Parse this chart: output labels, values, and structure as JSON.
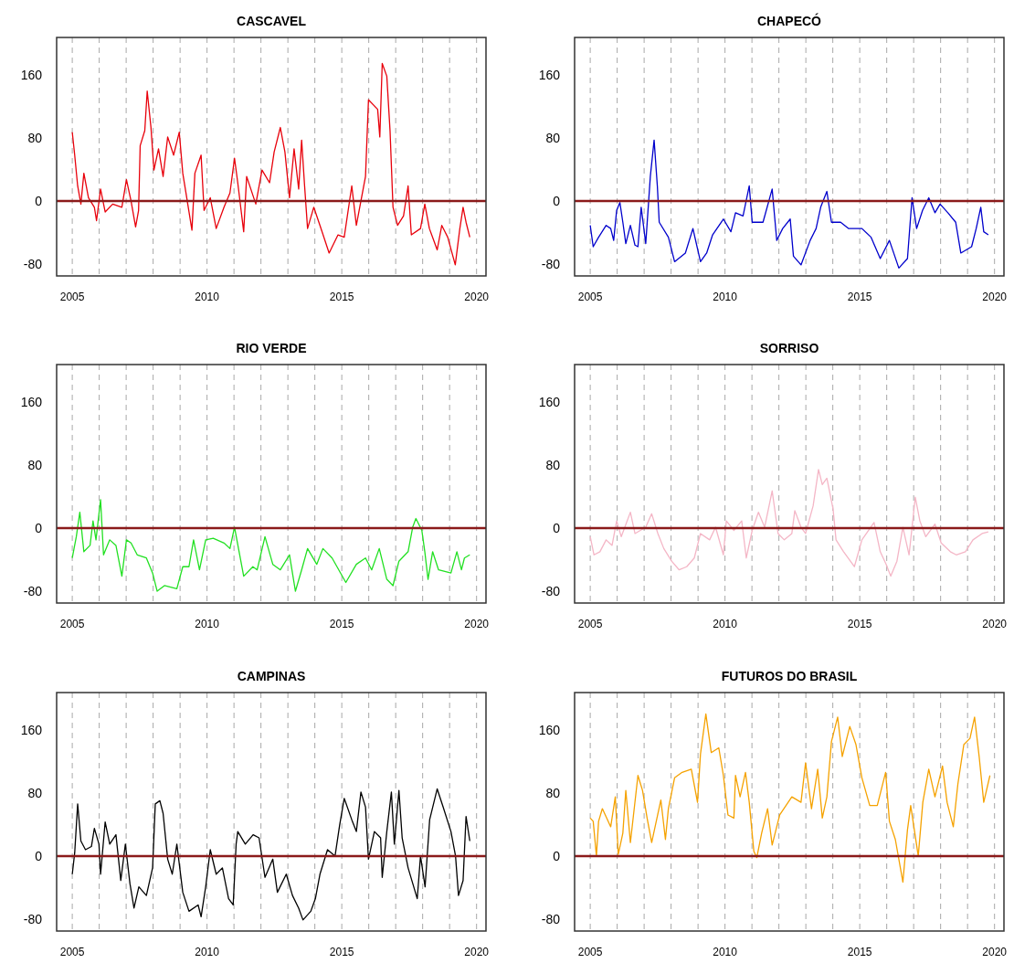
{
  "chart_data": [
    {
      "type": "line",
      "title": "CASCAVEL",
      "xlim": [
        2004.42,
        2020.35
      ],
      "ylim": [
        -95,
        207
      ],
      "yticks": [
        -80,
        0,
        80,
        160
      ],
      "grid": "x",
      "xticks": [
        2005,
        {
          "value": 2006,
          "label": null
        },
        {
          "value": 2007,
          "label": null
        },
        {
          "value": 2008,
          "label": null
        },
        {
          "value": 2009,
          "label": null
        },
        2010,
        {
          "value": 2011,
          "label": null
        },
        {
          "value": 2012,
          "label": null
        },
        {
          "value": 2013,
          "label": null
        },
        {
          "value": 2014,
          "label": null
        },
        2015,
        {
          "value": 2016,
          "label": null
        },
        {
          "value": 2017,
          "label": null
        },
        {
          "value": 2018,
          "label": null
        },
        {
          "value": 2019,
          "label": null
        },
        2020
      ],
      "ref_lines": [
        {
          "axis": "y",
          "value": 0,
          "color": "#8b1a1a"
        }
      ],
      "x": [
        2005.0,
        2005.09,
        2005.2,
        2005.32,
        2005.43,
        2005.6,
        2005.82,
        2005.9,
        2006.05,
        2006.22,
        2006.5,
        2006.84,
        2007.01,
        2007.18,
        2007.35,
        2007.46,
        2007.52,
        2007.69,
        2007.78,
        2007.92,
        2008.03,
        2008.2,
        2008.37,
        2008.54,
        2008.76,
        2008.97,
        2009.1,
        2009.21,
        2009.44,
        2009.55,
        2009.78,
        2009.89,
        2010.12,
        2010.34,
        2010.63,
        2010.85,
        2011.02,
        2011.14,
        2011.36,
        2011.47,
        2011.81,
        2012.04,
        2012.32,
        2012.49,
        2012.72,
        2012.89,
        2013.06,
        2013.23,
        2013.4,
        2013.51,
        2013.62,
        2013.73,
        2013.96,
        2014.19,
        2014.53,
        2014.86,
        2015.09,
        2015.37,
        2015.54,
        2015.88,
        2015.99,
        2016.33,
        2016.41,
        2016.5,
        2016.67,
        2016.79,
        2016.9,
        2017.07,
        2017.29,
        2017.46,
        2017.58,
        2017.92,
        2018.08,
        2018.25,
        2018.54,
        2018.71,
        2018.93,
        2019.21,
        2019.38,
        2019.5,
        2019.61,
        2019.75
      ],
      "series": [
        {
          "color": "#e8000b",
          "values": [
            87,
            58,
            19,
            -4,
            35,
            4,
            -8,
            -25,
            15,
            -14,
            -4,
            -8,
            27,
            0,
            -33,
            -12,
            70,
            89,
            139,
            93,
            39,
            66,
            31,
            81,
            58,
            87,
            35,
            12,
            -37,
            35,
            58,
            -12,
            4,
            -35,
            -8,
            10,
            54,
            23,
            -39,
            31,
            -4,
            39,
            23,
            62,
            93,
            62,
            4,
            66,
            15,
            77,
            19,
            -35,
            -8,
            -31,
            -66,
            -43,
            -46,
            19,
            -31,
            31,
            128,
            116,
            81,
            174,
            158,
            89,
            -8,
            -31,
            -19,
            19,
            -43,
            -35,
            -4,
            -35,
            -62,
            -31,
            -46,
            -81,
            -35,
            -8,
            -27,
            -46
          ]
        }
      ]
    },
    {
      "type": "line",
      "title": "CHAPECÓ",
      "xlim": [
        2004.42,
        2020.35
      ],
      "ylim": [
        -95,
        207
      ],
      "yticks": [
        -80,
        0,
        80,
        160
      ],
      "grid": "x",
      "xticks": [
        2005,
        {
          "value": 2006,
          "label": null
        },
        {
          "value": 2007,
          "label": null
        },
        {
          "value": 2008,
          "label": null
        },
        {
          "value": 2009,
          "label": null
        },
        2010,
        {
          "value": 2011,
          "label": null
        },
        {
          "value": 2012,
          "label": null
        },
        {
          "value": 2013,
          "label": null
        },
        {
          "value": 2014,
          "label": null
        },
        2015,
        {
          "value": 2016,
          "label": null
        },
        {
          "value": 2017,
          "label": null
        },
        {
          "value": 2018,
          "label": null
        },
        {
          "value": 2019,
          "label": null
        },
        2020
      ],
      "ref_lines": [
        {
          "axis": "y",
          "value": 0,
          "color": "#8b1a1a"
        }
      ],
      "x": [
        2005.0,
        2005.11,
        2005.31,
        2005.59,
        2005.76,
        2005.87,
        2005.98,
        2006.1,
        2006.21,
        2006.32,
        2006.49,
        2006.66,
        2006.77,
        2006.89,
        2007.06,
        2007.23,
        2007.37,
        2007.49,
        2007.56,
        2007.9,
        2008.13,
        2008.53,
        2008.81,
        2009.09,
        2009.32,
        2009.54,
        2009.94,
        2010.22,
        2010.39,
        2010.67,
        2010.9,
        2011.01,
        2011.41,
        2011.75,
        2011.92,
        2012.14,
        2012.42,
        2012.54,
        2012.82,
        2013.16,
        2013.38,
        2013.55,
        2013.78,
        2013.95,
        2014.29,
        2014.59,
        2015.08,
        2015.42,
        2015.76,
        2016.1,
        2016.45,
        2016.77,
        2016.94,
        2017.11,
        2017.33,
        2017.56,
        2017.79,
        2017.98,
        2018.27,
        2018.56,
        2018.75,
        2019.15,
        2019.32,
        2019.49,
        2019.6,
        2019.77
      ],
      "series": [
        {
          "color": "#0000cc",
          "values": [
            -31,
            -58,
            -46,
            -31,
            -35,
            -50,
            -12,
            -2,
            -27,
            -54,
            -31,
            -56,
            -58,
            -8,
            -54,
            31,
            77,
            19,
            -27,
            -46,
            -77,
            -66,
            -35,
            -77,
            -66,
            -43,
            -23,
            -39,
            -15,
            -19,
            19,
            -27,
            -27,
            15,
            -50,
            -35,
            -23,
            -70,
            -81,
            -50,
            -35,
            -8,
            12,
            -27,
            -27,
            -35,
            -35,
            -46,
            -73,
            -50,
            -85,
            -73,
            4,
            -35,
            -12,
            4,
            -15,
            -4,
            -15,
            -27,
            -66,
            -58,
            -35,
            -8,
            -39,
            -43
          ]
        }
      ]
    },
    {
      "type": "line",
      "title": "RIO VERDE",
      "xlim": [
        2004.42,
        2020.35
      ],
      "ylim": [
        -95,
        207
      ],
      "yticks": [
        -80,
        0,
        80,
        160
      ],
      "grid": "x",
      "xticks": [
        2005,
        {
          "value": 2006,
          "label": null
        },
        {
          "value": 2007,
          "label": null
        },
        {
          "value": 2008,
          "label": null
        },
        {
          "value": 2009,
          "label": null
        },
        2010,
        {
          "value": 2011,
          "label": null
        },
        {
          "value": 2012,
          "label": null
        },
        {
          "value": 2013,
          "label": null
        },
        {
          "value": 2014,
          "label": null
        },
        2015,
        {
          "value": 2016,
          "label": null
        },
        {
          "value": 2017,
          "label": null
        },
        {
          "value": 2018,
          "label": null
        },
        {
          "value": 2019,
          "label": null
        },
        2020
      ],
      "ref_lines": [
        {
          "axis": "y",
          "value": 0,
          "color": "#8b1a1a"
        }
      ],
      "x": [
        2005.0,
        2005.15,
        2005.28,
        2005.43,
        2005.66,
        2005.77,
        2005.88,
        2006.05,
        2006.16,
        2006.39,
        2006.62,
        2006.84,
        2007.01,
        2007.18,
        2007.41,
        2007.75,
        2007.98,
        2008.15,
        2008.42,
        2008.88,
        2009.1,
        2009.33,
        2009.5,
        2009.72,
        2009.95,
        2010.23,
        2010.63,
        2010.85,
        2011.02,
        2011.19,
        2011.36,
        2011.7,
        2011.86,
        2012.15,
        2012.44,
        2012.72,
        2013.06,
        2013.28,
        2013.51,
        2013.73,
        2014.07,
        2014.3,
        2014.64,
        2015.15,
        2015.54,
        2015.88,
        2016.11,
        2016.39,
        2016.67,
        2016.9,
        2017.12,
        2017.46,
        2017.63,
        2017.75,
        2017.97,
        2018.08,
        2018.2,
        2018.37,
        2018.59,
        2019.05,
        2019.27,
        2019.44,
        2019.55,
        2019.75
      ],
      "series": [
        {
          "color": "#22e022",
          "values": [
            -38,
            -11,
            20,
            -30,
            -22,
            9,
            -15,
            36,
            -34,
            -15,
            -22,
            -61,
            -15,
            -19,
            -34,
            -38,
            -57,
            -80,
            -73,
            -77,
            -49,
            -49,
            -15,
            -53,
            -15,
            -13,
            -19,
            -26,
            1,
            -30,
            -61,
            -49,
            -53,
            -11,
            -46,
            -53,
            -34,
            -80,
            -53,
            -26,
            -46,
            -26,
            -38,
            -69,
            -46,
            -38,
            -53,
            -26,
            -65,
            -73,
            -42,
            -30,
            1,
            12,
            -3,
            -30,
            -65,
            -30,
            -53,
            -57,
            -30,
            -53,
            -38,
            -34
          ]
        }
      ]
    },
    {
      "type": "line",
      "title": "SORRISO",
      "xlim": [
        2004.42,
        2020.35
      ],
      "ylim": [
        -95,
        207
      ],
      "yticks": [
        -80,
        0,
        80,
        160
      ],
      "grid": "x",
      "xticks": [
        2005,
        {
          "value": 2006,
          "label": null
        },
        {
          "value": 2007,
          "label": null
        },
        {
          "value": 2008,
          "label": null
        },
        {
          "value": 2009,
          "label": null
        },
        2010,
        {
          "value": 2011,
          "label": null
        },
        {
          "value": 2012,
          "label": null
        },
        {
          "value": 2013,
          "label": null
        },
        {
          "value": 2014,
          "label": null
        },
        2015,
        {
          "value": 2016,
          "label": null
        },
        {
          "value": 2017,
          "label": null
        },
        {
          "value": 2018,
          "label": null
        },
        {
          "value": 2019,
          "label": null
        },
        2020
      ],
      "ref_lines": [
        {
          "axis": "y",
          "value": 0,
          "color": "#8b1a1a"
        }
      ],
      "x": [
        2005.0,
        2005.14,
        2005.36,
        2005.59,
        2005.81,
        2005.98,
        2006.15,
        2006.49,
        2006.66,
        2007.06,
        2007.28,
        2007.51,
        2007.73,
        2008.02,
        2008.3,
        2008.58,
        2008.86,
        2009.09,
        2009.43,
        2009.65,
        2009.94,
        2010.05,
        2010.33,
        2010.62,
        2010.79,
        2011.01,
        2011.24,
        2011.47,
        2011.75,
        2011.97,
        2012.2,
        2012.48,
        2012.59,
        2012.82,
        2012.99,
        2013.27,
        2013.47,
        2013.61,
        2013.78,
        2014.01,
        2014.12,
        2014.4,
        2014.8,
        2015.08,
        2015.53,
        2015.76,
        2015.98,
        2016.15,
        2016.38,
        2016.6,
        2016.83,
        2017.06,
        2017.23,
        2017.45,
        2017.79,
        2018.02,
        2018.36,
        2018.58,
        2018.92,
        2019.2,
        2019.54,
        2019.77
      ],
      "series": [
        {
          "color": "#f4b6c6",
          "values": [
            -11,
            -34,
            -30,
            -15,
            -22,
            9,
            -11,
            20,
            -7,
            1,
            18,
            -7,
            -26,
            -42,
            -53,
            -49,
            -38,
            -7,
            -15,
            1,
            -34,
            9,
            -3,
            9,
            -38,
            -3,
            20,
            1,
            47,
            -7,
            -15,
            -7,
            22,
            1,
            -7,
            28,
            74,
            55,
            63,
            24,
            -15,
            -30,
            -49,
            -15,
            7,
            -30,
            -46,
            -61,
            -42,
            1,
            -34,
            39,
            9,
            -11,
            5,
            -19,
            -30,
            -34,
            -30,
            -15,
            -7,
            -5
          ]
        }
      ]
    },
    {
      "type": "line",
      "title": "CAMPINAS",
      "xlim": [
        2004.42,
        2020.35
      ],
      "ylim": [
        -95,
        207
      ],
      "yticks": [
        -80,
        0,
        80,
        160
      ],
      "grid": "x",
      "xticks": [
        2005,
        {
          "value": 2006,
          "label": null
        },
        {
          "value": 2007,
          "label": null
        },
        {
          "value": 2008,
          "label": null
        },
        {
          "value": 2009,
          "label": null
        },
        2010,
        {
          "value": 2011,
          "label": null
        },
        {
          "value": 2012,
          "label": null
        },
        {
          "value": 2013,
          "label": null
        },
        {
          "value": 2014,
          "label": null
        },
        2015,
        {
          "value": 2016,
          "label": null
        },
        {
          "value": 2017,
          "label": null
        },
        {
          "value": 2018,
          "label": null
        },
        {
          "value": 2019,
          "label": null
        },
        2020
      ],
      "ref_lines": [
        {
          "axis": "y",
          "value": 0,
          "color": "#8b1a1a"
        }
      ],
      "x": [
        2005.0,
        2005.09,
        2005.2,
        2005.32,
        2005.49,
        2005.71,
        2005.82,
        2005.99,
        2006.05,
        2006.22,
        2006.39,
        2006.62,
        2006.8,
        2006.97,
        2007.14,
        2007.29,
        2007.47,
        2007.75,
        2007.98,
        2008.08,
        2008.25,
        2008.37,
        2008.54,
        2008.71,
        2008.88,
        2009.1,
        2009.33,
        2009.67,
        2009.78,
        2009.95,
        2010.12,
        2010.34,
        2010.57,
        2010.8,
        2010.97,
        2011.08,
        2011.14,
        2011.42,
        2011.71,
        2011.93,
        2012.15,
        2012.44,
        2012.61,
        2012.94,
        2013.17,
        2013.4,
        2013.56,
        2013.85,
        2014.02,
        2014.19,
        2014.47,
        2014.75,
        2014.92,
        2015.09,
        2015.37,
        2015.54,
        2015.71,
        2015.88,
        2015.99,
        2016.21,
        2016.44,
        2016.5,
        2016.67,
        2016.84,
        2016.95,
        2017.12,
        2017.24,
        2017.46,
        2017.8,
        2017.92,
        2018.09,
        2018.26,
        2018.54,
        2018.76,
        2019.05,
        2019.22,
        2019.33,
        2019.5,
        2019.61,
        2019.75
      ],
      "series": [
        {
          "color": "#000000",
          "values": [
            -23,
            4,
            66,
            19,
            8,
            12,
            35,
            15,
            -23,
            43,
            15,
            27,
            -31,
            15,
            -35,
            -66,
            -39,
            -50,
            -15,
            66,
            70,
            54,
            -4,
            -23,
            15,
            -46,
            -70,
            -62,
            -77,
            -39,
            8,
            -23,
            -15,
            -54,
            -62,
            15,
            31,
            15,
            27,
            23,
            -27,
            -4,
            -46,
            -23,
            -50,
            -66,
            -81,
            -70,
            -54,
            -23,
            8,
            0,
            39,
            73,
            46,
            31,
            81,
            62,
            -4,
            31,
            23,
            -27,
            31,
            81,
            15,
            83,
            23,
            -15,
            -54,
            0,
            -39,
            46,
            85,
            62,
            31,
            0,
            -50,
            -31,
            50,
            19
          ]
        }
      ]
    },
    {
      "type": "line",
      "title": "FUTUROS DO BRASIL",
      "xlim": [
        2004.42,
        2020.35
      ],
      "ylim": [
        -95,
        207
      ],
      "yticks": [
        -80,
        0,
        80,
        160
      ],
      "grid": "x",
      "xticks": [
        2005,
        {
          "value": 2006,
          "label": null
        },
        {
          "value": 2007,
          "label": null
        },
        {
          "value": 2008,
          "label": null
        },
        {
          "value": 2009,
          "label": null
        },
        2010,
        {
          "value": 2011,
          "label": null
        },
        {
          "value": 2012,
          "label": null
        },
        {
          "value": 2013,
          "label": null
        },
        {
          "value": 2014,
          "label": null
        },
        2015,
        {
          "value": 2016,
          "label": null
        },
        {
          "value": 2017,
          "label": null
        },
        {
          "value": 2018,
          "label": null
        },
        {
          "value": 2019,
          "label": null
        },
        2020
      ],
      "ref_lines": [
        {
          "axis": "y",
          "value": 0,
          "color": "#8b1a1a"
        }
      ],
      "x": [
        2005.0,
        2005.11,
        2005.23,
        2005.31,
        2005.45,
        2005.76,
        2005.93,
        2006.04,
        2006.21,
        2006.32,
        2006.49,
        2006.77,
        2006.94,
        2007.11,
        2007.28,
        2007.62,
        2007.79,
        2007.9,
        2008.13,
        2008.41,
        2008.75,
        2008.98,
        2009.09,
        2009.29,
        2009.49,
        2009.77,
        2009.94,
        2010.11,
        2010.33,
        2010.39,
        2010.56,
        2010.76,
        2010.9,
        2011.07,
        2011.18,
        2011.36,
        2011.58,
        2011.75,
        2012.03,
        2012.48,
        2012.82,
        2012.99,
        2013.21,
        2013.44,
        2013.61,
        2013.78,
        2013.95,
        2014.18,
        2014.35,
        2014.63,
        2014.86,
        2015.08,
        2015.37,
        2015.65,
        2015.96,
        2016.1,
        2016.32,
        2016.6,
        2016.77,
        2016.89,
        2017.17,
        2017.34,
        2017.56,
        2017.79,
        2018.07,
        2018.24,
        2018.47,
        2018.64,
        2018.86,
        2019.09,
        2019.26,
        2019.43,
        2019.6,
        2019.83
      ],
      "series": [
        {
          "color": "#f5a200",
          "values": [
            48,
            44,
            0,
            44,
            60,
            37,
            75,
            2,
            29,
            83,
            17,
            102,
            83,
            48,
            17,
            71,
            21,
            60,
            99,
            106,
            110,
            68,
            129,
            180,
            131,
            137,
            102,
            52,
            48,
            102,
            75,
            106,
            68,
            6,
            -2,
            29,
            60,
            14,
            52,
            75,
            68,
            118,
            60,
            110,
            48,
            75,
            145,
            176,
            126,
            164,
            141,
            99,
            64,
            64,
            106,
            44,
            21,
            -33,
            33,
            64,
            0,
            68,
            110,
            75,
            114,
            68,
            37,
            91,
            141,
            149,
            176,
            126,
            68,
            102
          ]
        }
      ]
    }
  ]
}
